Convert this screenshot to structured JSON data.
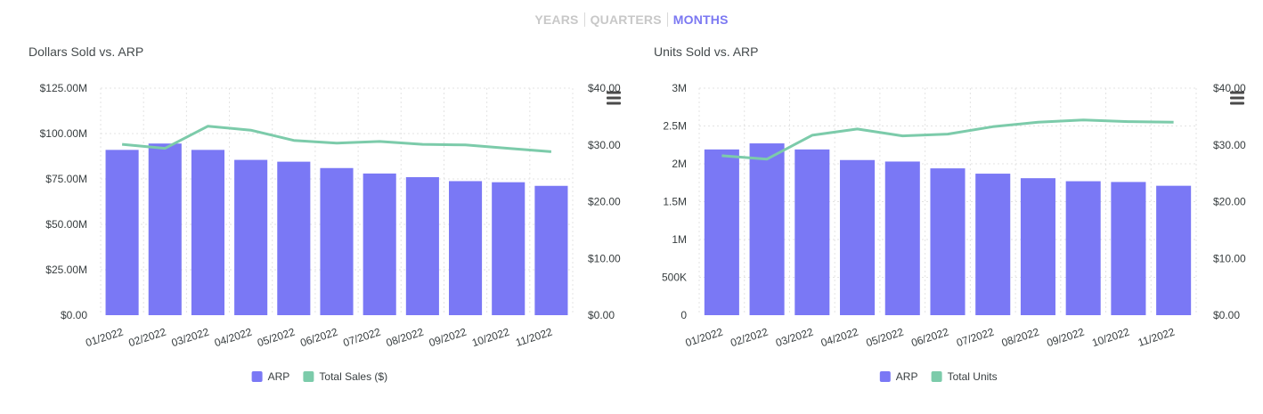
{
  "period_tabs": [
    {
      "label": "YEARS",
      "active": false
    },
    {
      "label": "QUARTERS",
      "active": false
    },
    {
      "label": "MONTHS",
      "active": true
    }
  ],
  "colors": {
    "bar": "#7a78f5",
    "line": "#7ccbaa",
    "tab_active": "#7b78f2",
    "tab_inactive": "#c8c8c8"
  },
  "toolbar_icon": "hamburger-menu-icon",
  "chart_data": [
    {
      "type": "bar",
      "title": "Dollars Sold vs. ARP",
      "categories": [
        "01/2022",
        "02/2022",
        "03/2022",
        "04/2022",
        "05/2022",
        "06/2022",
        "07/2022",
        "08/2022",
        "09/2022",
        "10/2022",
        "11/2022"
      ],
      "left_axis": {
        "ylim": [
          0,
          125000000
        ],
        "ticks": [
          "$0.00",
          "$25.00M",
          "$50.00M",
          "$75.00M",
          "$100.00M",
          "$125.00M"
        ]
      },
      "right_axis": {
        "ylim": [
          0,
          40
        ],
        "ticks": [
          "$0.00",
          "$10.00",
          "$20.00",
          "$30.00",
          "$40.00"
        ]
      },
      "series": [
        {
          "name": "ARP",
          "kind": "bar",
          "axis": "left",
          "values": [
            91000000,
            94500000,
            91000000,
            85500000,
            84500000,
            81000000,
            78000000,
            76000000,
            73800000,
            73200000,
            71200000
          ]
        },
        {
          "name": "Total Sales ($)",
          "kind": "line",
          "axis": "right",
          "values": [
            30.1,
            29.4,
            33.3,
            32.6,
            30.8,
            30.3,
            30.6,
            30.1,
            30.0,
            29.4,
            28.8
          ]
        }
      ]
    },
    {
      "type": "bar",
      "title": "Units Sold vs. ARP",
      "categories": [
        "01/2022",
        "02/2022",
        "03/2022",
        "04/2022",
        "05/2022",
        "06/2022",
        "07/2022",
        "08/2022",
        "09/2022",
        "10/2022",
        "11/2022"
      ],
      "left_axis": {
        "ylim": [
          0,
          3000000
        ],
        "ticks": [
          "0",
          "500K",
          "1M",
          "1.5M",
          "2M",
          "2.5M",
          "3M"
        ]
      },
      "right_axis": {
        "ylim": [
          0,
          40
        ],
        "ticks": [
          "$0.00",
          "$10.00",
          "$20.00",
          "$30.00",
          "$40.00"
        ]
      },
      "series": [
        {
          "name": "ARP",
          "kind": "bar",
          "axis": "left",
          "values": [
            2190000,
            2270000,
            2190000,
            2050000,
            2030000,
            1940000,
            1870000,
            1810000,
            1770000,
            1760000,
            1710000
          ]
        },
        {
          "name": "Total Units",
          "kind": "line",
          "axis": "right",
          "values": [
            28.1,
            27.5,
            31.7,
            32.8,
            31.6,
            31.9,
            33.2,
            34.0,
            34.4,
            34.1,
            34.0
          ]
        }
      ]
    }
  ]
}
